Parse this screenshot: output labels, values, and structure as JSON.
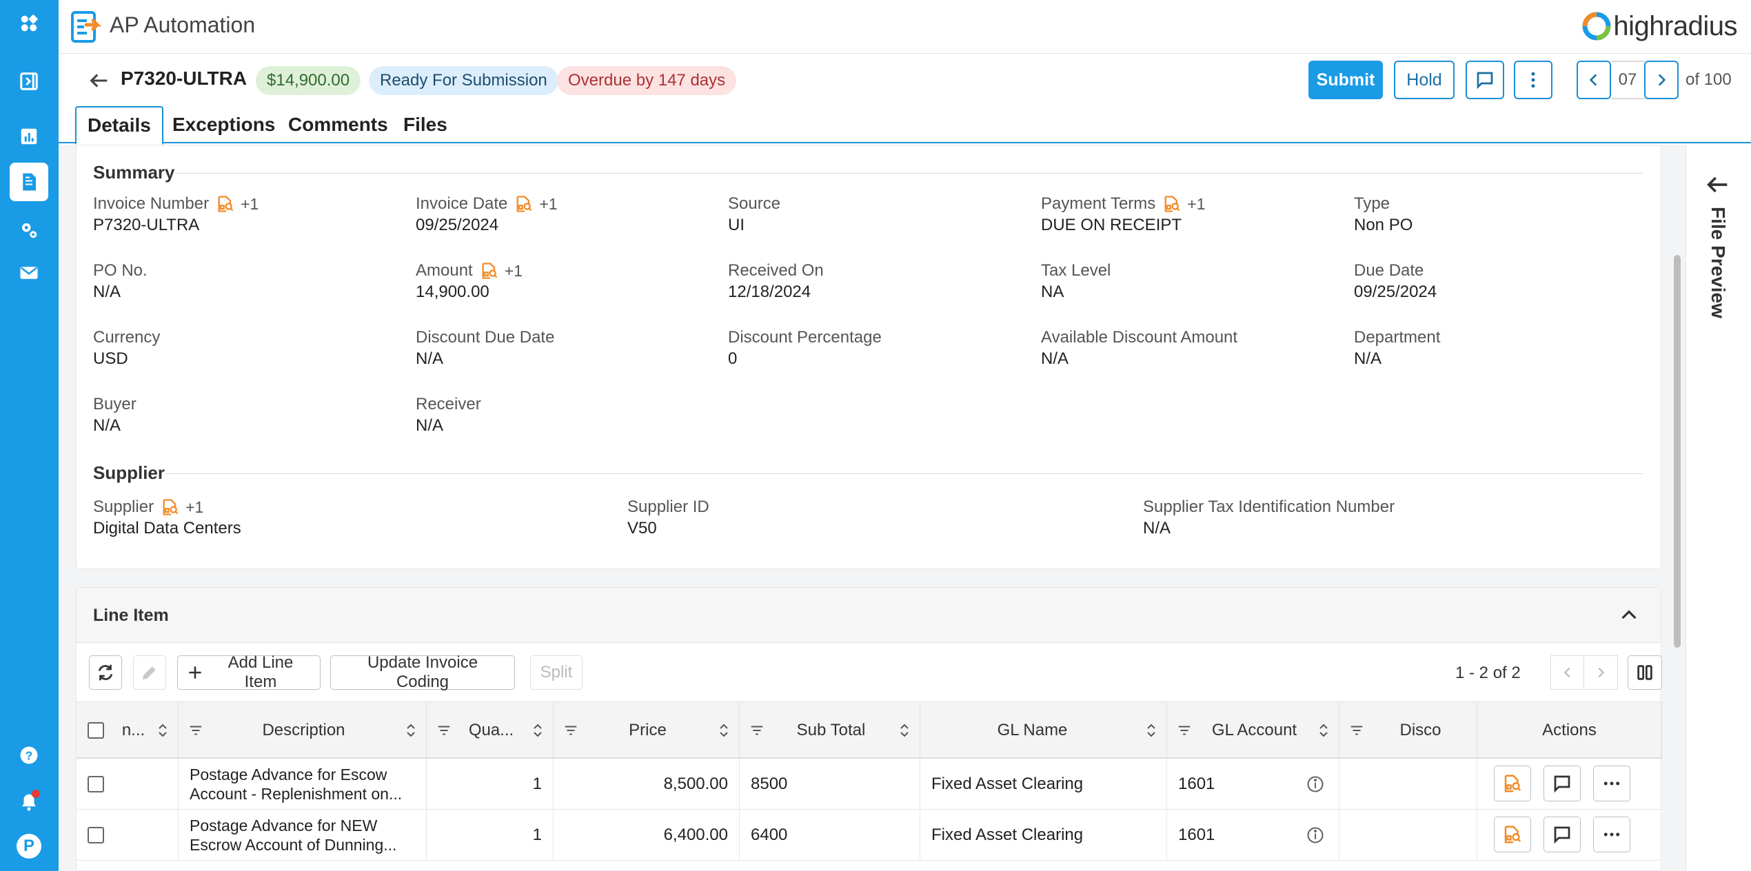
{
  "app": {
    "title": "AP Automation",
    "brand": "highradius"
  },
  "invoice": {
    "id": "P7320-ULTRA",
    "amount_chip": "$14,900.00",
    "status_chip": "Ready For Submission",
    "overdue_chip": "Overdue by 147 days"
  },
  "actions": {
    "submit": "Submit",
    "hold": "Hold"
  },
  "pager": {
    "current": "07",
    "total_label": "of 100"
  },
  "tabs": [
    "Details",
    "Exceptions",
    "Comments",
    "Files"
  ],
  "summary": {
    "title": "Summary",
    "fields": [
      {
        "label": "Invoice Number",
        "value": "P7320-ULTRA",
        "extra": "+1"
      },
      {
        "label": "Invoice Date",
        "value": "09/25/2024",
        "extra": "+1"
      },
      {
        "label": "Source",
        "value": "UI"
      },
      {
        "label": "Payment Terms",
        "value": "DUE ON RECEIPT",
        "extra": "+1"
      },
      {
        "label": "Type",
        "value": "Non PO"
      },
      {
        "label": "PO No.",
        "value": "N/A"
      },
      {
        "label": "Amount",
        "value": "14,900.00",
        "extra": "+1"
      },
      {
        "label": "Received On",
        "value": "12/18/2024"
      },
      {
        "label": "Tax Level",
        "value": "NA"
      },
      {
        "label": "Due Date",
        "value": "09/25/2024"
      },
      {
        "label": "Currency",
        "value": "USD"
      },
      {
        "label": "Discount Due Date",
        "value": "N/A"
      },
      {
        "label": "Discount Percentage",
        "value": "0"
      },
      {
        "label": "Available Discount Amount",
        "value": "N/A"
      },
      {
        "label": "Department",
        "value": "N/A"
      },
      {
        "label": "Buyer",
        "value": "N/A"
      },
      {
        "label": "Receiver",
        "value": "N/A"
      }
    ]
  },
  "supplier": {
    "title": "Supplier",
    "fields": [
      {
        "label": "Supplier",
        "value": "Digital Data Centers",
        "extra": "+1"
      },
      {
        "label": "Supplier ID",
        "value": "V50"
      },
      {
        "label": "Supplier Tax Identification Number",
        "value": "N/A"
      }
    ]
  },
  "line_items": {
    "title": "Line Item",
    "toolbar": {
      "add": "Add Line Item",
      "update": "Update Invoice Coding",
      "split": "Split"
    },
    "page_count": "1 - 2 of 2",
    "columns": [
      "n...",
      "Description",
      "Qua...",
      "Price",
      "Sub Total",
      "GL Name",
      "GL Account",
      "Disco",
      "Actions"
    ],
    "rows": [
      {
        "description": "Postage Advance for Escow Account - Replenishment on...",
        "quantity": "1",
        "price": "8,500.00",
        "sub_total": "8500",
        "gl_name": "Fixed Asset Clearing",
        "gl_account": "1601"
      },
      {
        "description": "Postage Advance for NEW Escrow Account of Dunning...",
        "quantity": "1",
        "price": "6,400.00",
        "sub_total": "6400",
        "gl_name": "Fixed Asset Clearing",
        "gl_account": "1601"
      }
    ]
  },
  "file_preview": {
    "label": "File Preview"
  },
  "icons": {
    "rail": [
      "apps-icon",
      "collapse-panel-icon",
      "analytics-icon",
      "invoice-document-icon",
      "settings-gears-icon",
      "mail-icon",
      "help-icon",
      "bell-icon"
    ],
    "accent": "#1a9be6"
  }
}
